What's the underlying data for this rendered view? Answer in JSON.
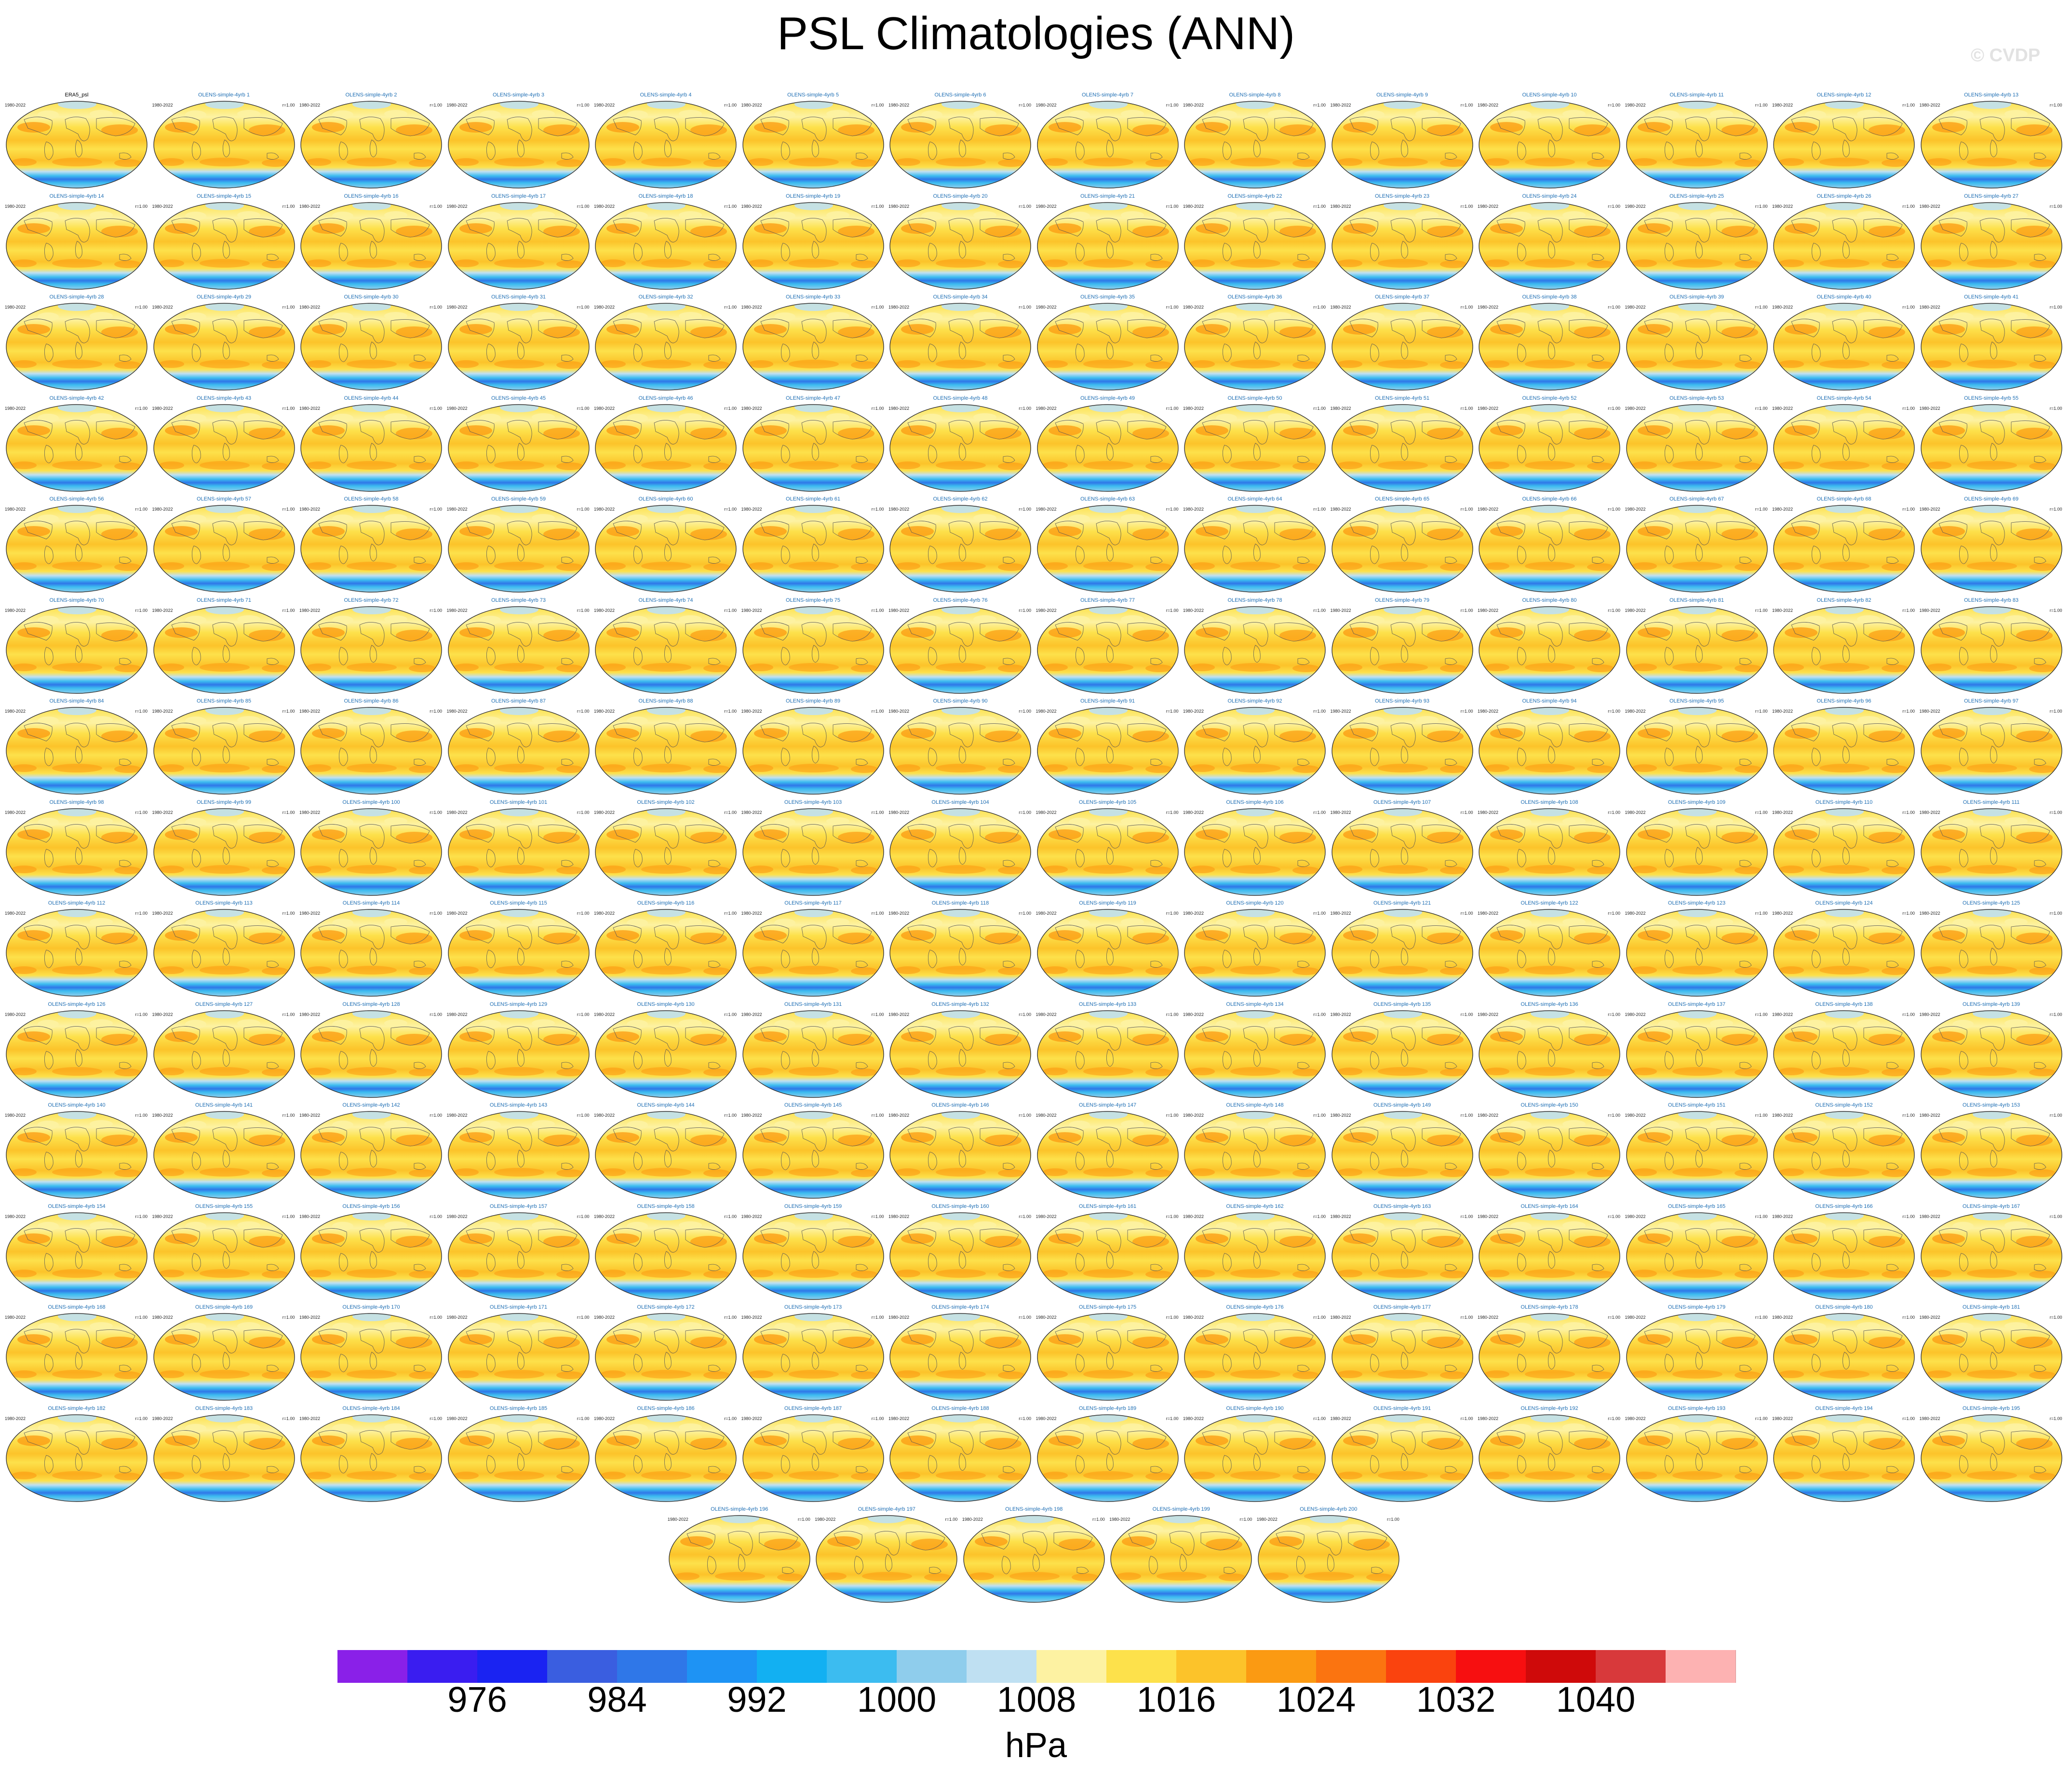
{
  "chart_data": {
    "type": "map",
    "title": "PSL Climatologies (ANN)",
    "watermark": "© CVDP",
    "years": "1980-2022",
    "correlation_label": "r=1.00",
    "observation_panel": "ERA5_psl",
    "member_prefix": "OLENS-simple-4yrb",
    "member_count": 200,
    "layout": {
      "columns": 14,
      "full_rows": 14,
      "last_row_count": 5
    },
    "colorbar": {
      "units": "hPa",
      "levels": [
        972,
        976,
        980,
        984,
        988,
        992,
        996,
        1000,
        1004,
        1008,
        1012,
        1016,
        1020,
        1024,
        1028,
        1032,
        1036,
        1040,
        1044
      ],
      "tick_labels": [
        "976",
        "984",
        "992",
        "1000",
        "1008",
        "1016",
        "1024",
        "1032",
        "1040"
      ],
      "colors": [
        "#8a20e8",
        "#3a1df0",
        "#1a23f2",
        "#3a5ee0",
        "#2f77e8",
        "#1e93f4",
        "#12b0f2",
        "#3cbcf0",
        "#8fcdec",
        "#bfe0f2",
        "#fdf2a2",
        "#fde14b",
        "#fcc32a",
        "#fb9a12",
        "#fb7410",
        "#fa430e",
        "#f70f10",
        "#cf0a0a",
        "#d8393b",
        "#fdb2b2"
      ]
    }
  }
}
